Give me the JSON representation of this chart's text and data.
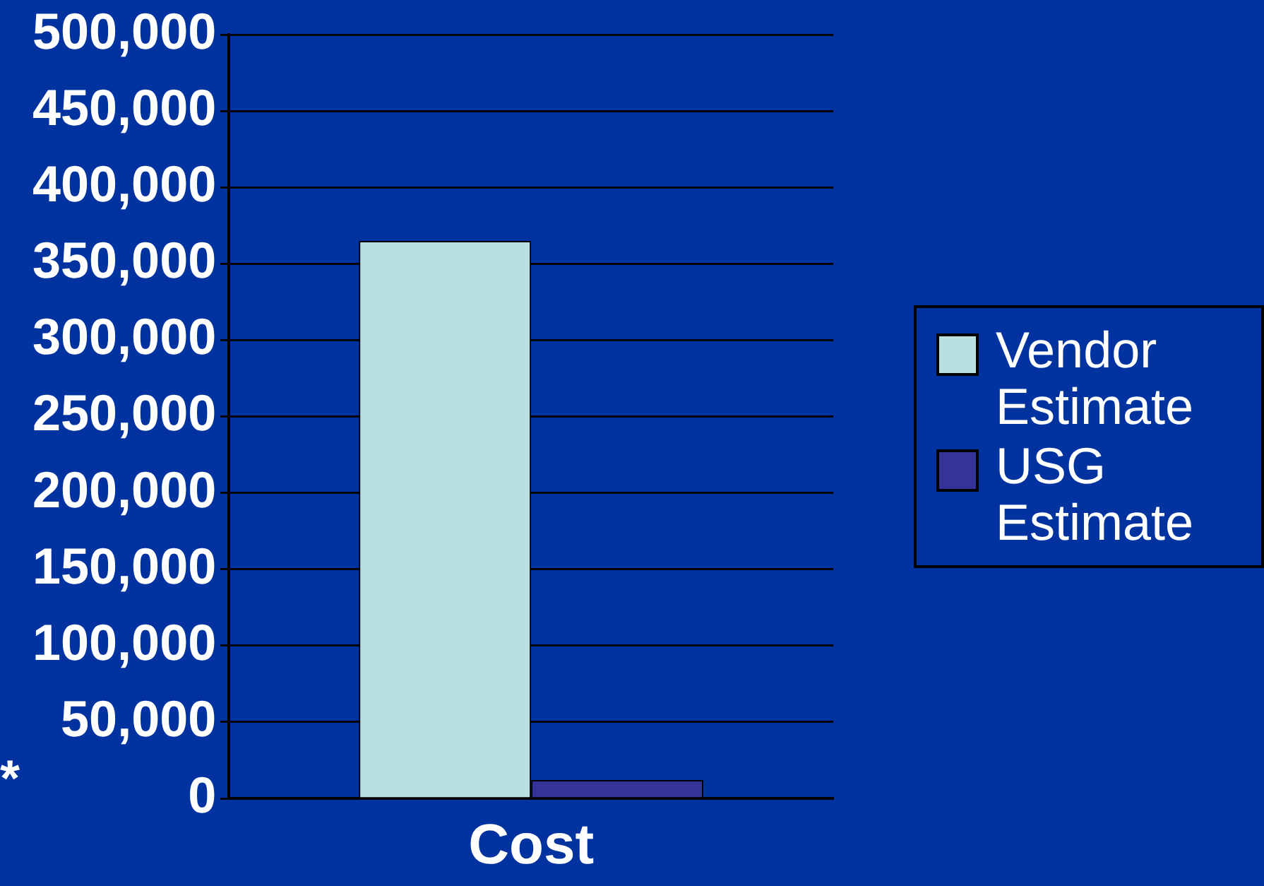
{
  "chart_data": {
    "type": "bar",
    "categories": [
      "Cost"
    ],
    "series": [
      {
        "name": "Vendor Estimate",
        "color": "#b8e0e0",
        "values": [
          365000
        ]
      },
      {
        "name": "USG Estimate",
        "color": "#333399",
        "values": [
          12000
        ]
      }
    ],
    "ylim": [
      0,
      500000
    ],
    "yticks": [
      0,
      {
        "value": 50000,
        "label": "50,000"
      },
      {
        "value": 100000,
        "label": "100,000"
      },
      {
        "value": 150000,
        "label": "150,000"
      },
      {
        "value": 200000,
        "label": "200,000"
      },
      {
        "value": 250000,
        "label": "250,000"
      },
      {
        "value": 300000,
        "label": "300,000"
      },
      {
        "value": 350000,
        "label": "350,000"
      },
      {
        "value": 400000,
        "label": "400,000"
      },
      {
        "value": 450000,
        "label": "450,000"
      },
      {
        "value": 500000,
        "label": "500,000"
      }
    ],
    "grid": "y",
    "legend": "right",
    "annotations": [
      "*"
    ]
  }
}
